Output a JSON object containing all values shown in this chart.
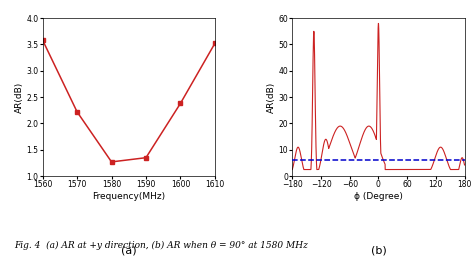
{
  "plot_a": {
    "x": [
      1560,
      1570,
      1580,
      1590,
      1600,
      1610
    ],
    "y": [
      3.58,
      2.22,
      1.27,
      1.35,
      2.38,
      3.52
    ],
    "xlabel": "Frequency(MHz)",
    "ylabel": "AR(dB)",
    "xlim": [
      1560,
      1610
    ],
    "ylim": [
      1.0,
      4.0
    ],
    "xticks": [
      1560,
      1570,
      1580,
      1590,
      1600,
      1610
    ],
    "yticks": [
      1.0,
      1.5,
      2.0,
      2.5,
      3.0,
      3.5,
      4.0
    ],
    "color": "#cc2222",
    "marker": "s",
    "label": "(a)"
  },
  "plot_b": {
    "xlabel": "ϕ (Degree)",
    "ylabel": "AR(dB)",
    "xlim": [
      -180,
      180
    ],
    "ylim": [
      0,
      60
    ],
    "xticks": [
      -180,
      -120,
      -60,
      0,
      60,
      120,
      180
    ],
    "yticks": [
      0,
      10,
      20,
      30,
      40,
      50,
      60
    ],
    "curve_color": "#cc2222",
    "dashed_color": "#0000cc",
    "dashed_y": 6.0,
    "label": "(b)"
  },
  "figure_caption": "Fig. 4  (a) AR at +y direction, (b) AR when θ = 90° at 1580 MHz",
  "bg_color": "#ffffff"
}
